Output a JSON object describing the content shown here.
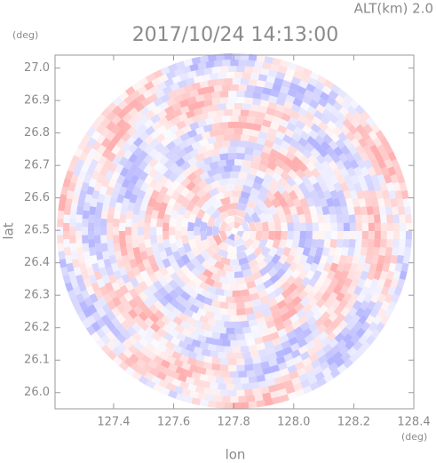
{
  "chart_data": {
    "type": "radar-ppi",
    "title": "2017/10/24 14:13:00",
    "subtitle": "ALT(km) 2.0",
    "x_label": "lon",
    "y_label": "lat",
    "x_unit": "(deg)",
    "y_unit": "(deg)",
    "xlim": [
      127.205,
      128.4
    ],
    "ylim": [
      25.95,
      27.04
    ],
    "xticks": [
      {
        "value": 127.4,
        "label": "127.4"
      },
      {
        "value": 127.6,
        "label": "127.6"
      },
      {
        "value": 127.8,
        "label": "127.8"
      },
      {
        "value": 128.0,
        "label": "128.0"
      },
      {
        "value": 128.2,
        "label": "128.2"
      },
      {
        "value": 128.4,
        "label": "128.4"
      }
    ],
    "yticks": [
      {
        "value": 26.0,
        "label": "26.0"
      },
      {
        "value": 26.1,
        "label": "26.1"
      },
      {
        "value": 26.2,
        "label": "26.2"
      },
      {
        "value": 26.3,
        "label": "26.3"
      },
      {
        "value": 26.4,
        "label": "26.4"
      },
      {
        "value": 26.5,
        "label": "26.5"
      },
      {
        "value": 26.6,
        "label": "26.6"
      },
      {
        "value": 26.7,
        "label": "26.7"
      },
      {
        "value": 26.8,
        "label": "26.8"
      },
      {
        "value": 26.9,
        "label": "26.9"
      },
      {
        "value": 27.0,
        "label": "27.0"
      }
    ]
  }
}
